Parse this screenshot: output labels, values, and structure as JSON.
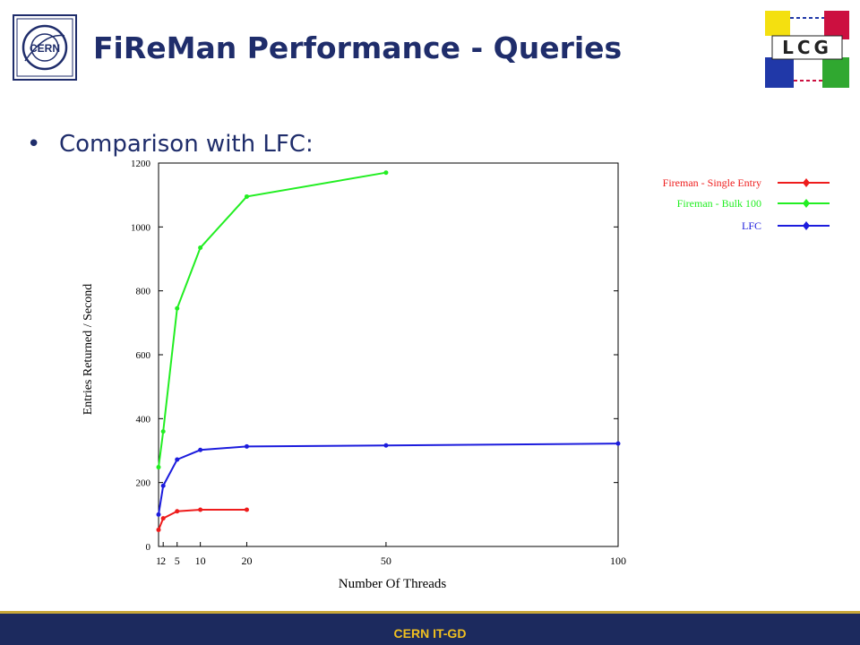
{
  "header": {
    "title": "FiReMan Performance - Queries",
    "cern_logo_text": "CERN",
    "lcg_logo_text": "LCG"
  },
  "bullet": {
    "text": "Comparison with LFC:"
  },
  "footer": {
    "text": "CERN IT-GD"
  },
  "colors": {
    "title": "#1f2d6b",
    "footer_bg": "#1c2a5e",
    "footer_text": "#f0c020",
    "single_entry": "#ee1c1c",
    "bulk_100": "#22ee22",
    "lfc": "#1c1cdd"
  },
  "chart_data": {
    "type": "line",
    "title": "",
    "xlabel": "Number Of Threads",
    "ylabel": "Entries Returned / Second",
    "xlim": [
      1,
      100
    ],
    "ylim": [
      0,
      1200
    ],
    "x_ticks": [
      1,
      2,
      5,
      10,
      20,
      50,
      100
    ],
    "x_tick_labels": [
      "1",
      "2",
      "5",
      "10",
      "20",
      "50",
      "100"
    ],
    "y_ticks": [
      0,
      200,
      400,
      600,
      800,
      1000,
      1200
    ],
    "y_tick_labels": [
      "0",
      "200",
      "400",
      "600",
      "800",
      "1000",
      "1200"
    ],
    "grid": false,
    "legend_position": "right, outside plot",
    "series": [
      {
        "name": "Fireman - Single Entry",
        "color": "#ee1c1c",
        "x": [
          1,
          2,
          5,
          10,
          20
        ],
        "y": [
          52,
          88,
          110,
          115,
          115
        ]
      },
      {
        "name": "Fireman - Bulk 100",
        "color": "#22ee22",
        "x": [
          1,
          2,
          5,
          10,
          20,
          50
        ],
        "y": [
          248,
          360,
          745,
          935,
          1095,
          1170
        ]
      },
      {
        "name": "LFC",
        "color": "#1c1cdd",
        "x": [
          1,
          2,
          5,
          10,
          20,
          50,
          100
        ],
        "y": [
          100,
          190,
          272,
          302,
          313,
          316,
          322
        ]
      }
    ]
  }
}
